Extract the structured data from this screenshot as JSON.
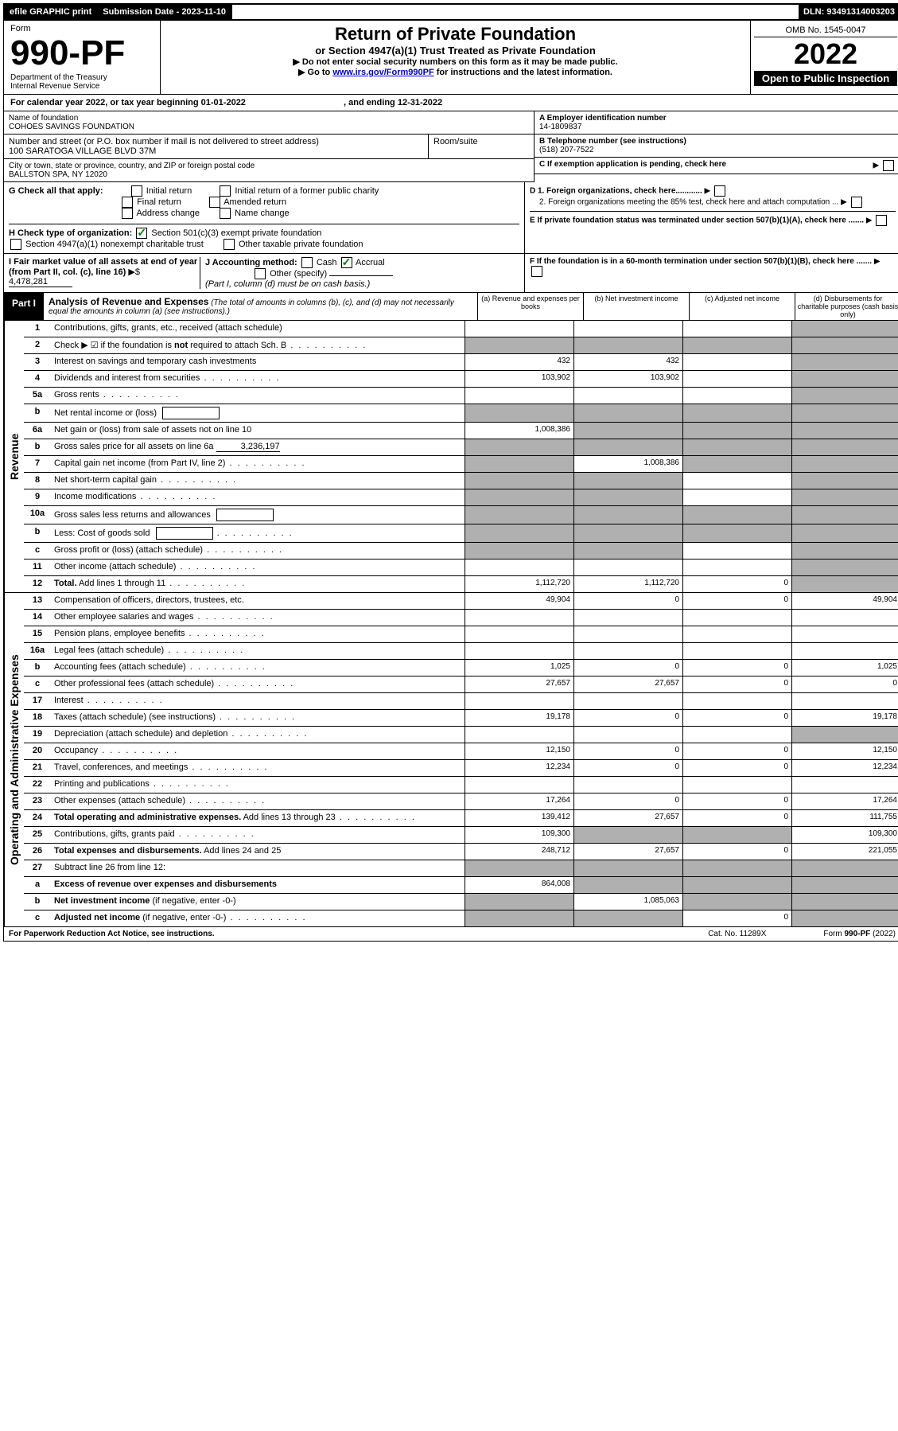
{
  "top_bar": {
    "efile": "efile GRAPHIC print",
    "submission_label": "Submission Date - 2023-11-10",
    "dln": "DLN: 93491314003203"
  },
  "header": {
    "form_word": "Form",
    "form_number": "990-PF",
    "dept": "Department of the Treasury",
    "irs": "Internal Revenue Service",
    "title": "Return of Private Foundation",
    "subtitle": "or Section 4947(a)(1) Trust Treated as Private Foundation",
    "instr1": "▶ Do not enter social security numbers on this form as it may be made public.",
    "instr2_prefix": "▶ Go to ",
    "instr2_link": "www.irs.gov/Form990PF",
    "instr2_suffix": " for instructions and the latest information.",
    "omb": "OMB No. 1545-0047",
    "year": "2022",
    "open_public": "Open to Public Inspection"
  },
  "cal_year": {
    "prefix": "For calendar year 2022, or tax year beginning ",
    "begin": "01-01-2022",
    "mid": " , and ending ",
    "end": "12-31-2022"
  },
  "entity": {
    "name_label": "Name of foundation",
    "name": "COHOES SAVINGS FOUNDATION",
    "addr_label": "Number and street (or P.O. box number if mail is not delivered to street address)",
    "addr": "100 SARATOGA VILLAGE BLVD 37M",
    "room_label": "Room/suite",
    "city_label": "City or town, state or province, country, and ZIP or foreign postal code",
    "city": "BALLSTON SPA, NY  12020",
    "a_label": "A Employer identification number",
    "a_val": "14-1809837",
    "b_label": "B Telephone number (see instructions)",
    "b_val": "(518) 207-7522",
    "c_label": "C If exemption application is pending, check here"
  },
  "checks": {
    "g_label": "G Check all that apply:",
    "g_opts": [
      "Initial return",
      "Initial return of a former public charity",
      "Final return",
      "Amended return",
      "Address change",
      "Name change"
    ],
    "h_label": "H Check type of organization:",
    "h_opt1": "Section 501(c)(3) exempt private foundation",
    "h_opt2": "Section 4947(a)(1) nonexempt charitable trust",
    "h_opt3": "Other taxable private foundation",
    "i_label": "I Fair market value of all assets at end of year (from Part II, col. (c), line 16)",
    "i_val": "4,478,281",
    "j_label": "J Accounting method:",
    "j_cash": "Cash",
    "j_accrual": "Accrual",
    "j_other": "Other (specify)",
    "j_note": "(Part I, column (d) must be on cash basis.)",
    "d1": "D 1. Foreign organizations, check here............",
    "d2": "2. Foreign organizations meeting the 85% test, check here and attach computation ...",
    "e": "E  If private foundation status was terminated under section 507(b)(1)(A), check here .......",
    "f": "F  If the foundation is in a 60-month termination under section 507(b)(1)(B), check here ......."
  },
  "part1": {
    "label": "Part I",
    "title": "Analysis of Revenue and Expenses",
    "note": " (The total of amounts in columns (b), (c), and (d) may not necessarily equal the amounts in column (a) (see instructions).)",
    "cols": {
      "a": "(a) Revenue and expenses per books",
      "b": "(b) Net investment income",
      "c": "(c) Adjusted net income",
      "d": "(d) Disbursements for charitable purposes (cash basis only)"
    }
  },
  "side_labels": {
    "revenue": "Revenue",
    "expenses": "Operating and Administrative Expenses"
  },
  "rows": [
    {
      "num": "1",
      "desc": "Contributions, gifts, grants, etc., received (attach schedule)",
      "a": "",
      "b": "",
      "c": "",
      "d": "shaded"
    },
    {
      "num": "2",
      "desc": "Check ▶ ☑ if the foundation is <b>not</b> required to attach Sch. B",
      "a": "shaded",
      "b": "shaded",
      "c": "shaded",
      "d": "shaded",
      "dots": true
    },
    {
      "num": "3",
      "desc": "Interest on savings and temporary cash investments",
      "a": "432",
      "b": "432",
      "c": "",
      "d": "shaded"
    },
    {
      "num": "4",
      "desc": "Dividends and interest from securities",
      "a": "103,902",
      "b": "103,902",
      "c": "",
      "d": "shaded",
      "dots": true
    },
    {
      "num": "5a",
      "desc": "Gross rents",
      "a": "",
      "b": "",
      "c": "",
      "d": "shaded",
      "dots": true
    },
    {
      "num": "b",
      "desc": "Net rental income or (loss)",
      "a": "shaded",
      "b": "shaded",
      "c": "shaded",
      "d": "shaded",
      "inline_box": true
    },
    {
      "num": "6a",
      "desc": "Net gain or (loss) from sale of assets not on line 10",
      "a": "1,008,386",
      "b": "shaded",
      "c": "shaded",
      "d": "shaded"
    },
    {
      "num": "b",
      "desc": "Gross sales price for all assets on line 6a",
      "a": "shaded",
      "b": "shaded",
      "c": "shaded",
      "d": "shaded",
      "inline_val": "3,236,197"
    },
    {
      "num": "7",
      "desc": "Capital gain net income (from Part IV, line 2)",
      "a": "shaded",
      "b": "1,008,386",
      "c": "shaded",
      "d": "shaded",
      "dots": true
    },
    {
      "num": "8",
      "desc": "Net short-term capital gain",
      "a": "shaded",
      "b": "shaded",
      "c": "",
      "d": "shaded",
      "dots": true
    },
    {
      "num": "9",
      "desc": "Income modifications",
      "a": "shaded",
      "b": "shaded",
      "c": "",
      "d": "shaded",
      "dots": true
    },
    {
      "num": "10a",
      "desc": "Gross sales less returns and allowances",
      "a": "shaded",
      "b": "shaded",
      "c": "shaded",
      "d": "shaded",
      "inline_box": true
    },
    {
      "num": "b",
      "desc": "Less: Cost of goods sold",
      "a": "shaded",
      "b": "shaded",
      "c": "shaded",
      "d": "shaded",
      "dots": true,
      "inline_box": true
    },
    {
      "num": "c",
      "desc": "Gross profit or (loss) (attach schedule)",
      "a": "shaded",
      "b": "shaded",
      "c": "",
      "d": "shaded",
      "dots": true
    },
    {
      "num": "11",
      "desc": "Other income (attach schedule)",
      "a": "",
      "b": "",
      "c": "",
      "d": "shaded",
      "dots": true
    },
    {
      "num": "12",
      "desc": "<b>Total.</b> Add lines 1 through 11",
      "a": "1,112,720",
      "b": "1,112,720",
      "c": "0",
      "d": "shaded",
      "dots": true
    }
  ],
  "exp_rows": [
    {
      "num": "13",
      "desc": "Compensation of officers, directors, trustees, etc.",
      "a": "49,904",
      "b": "0",
      "c": "0",
      "d": "49,904"
    },
    {
      "num": "14",
      "desc": "Other employee salaries and wages",
      "a": "",
      "b": "",
      "c": "",
      "d": "",
      "dots": true
    },
    {
      "num": "15",
      "desc": "Pension plans, employee benefits",
      "a": "",
      "b": "",
      "c": "",
      "d": "",
      "dots": true
    },
    {
      "num": "16a",
      "desc": "Legal fees (attach schedule)",
      "a": "",
      "b": "",
      "c": "",
      "d": "",
      "dots": true
    },
    {
      "num": "b",
      "desc": "Accounting fees (attach schedule)",
      "a": "1,025",
      "b": "0",
      "c": "0",
      "d": "1,025",
      "dots": true
    },
    {
      "num": "c",
      "desc": "Other professional fees (attach schedule)",
      "a": "27,657",
      "b": "27,657",
      "c": "0",
      "d": "0",
      "dots": true
    },
    {
      "num": "17",
      "desc": "Interest",
      "a": "",
      "b": "",
      "c": "",
      "d": "",
      "dots": true
    },
    {
      "num": "18",
      "desc": "Taxes (attach schedule) (see instructions)",
      "a": "19,178",
      "b": "0",
      "c": "0",
      "d": "19,178",
      "dots": true
    },
    {
      "num": "19",
      "desc": "Depreciation (attach schedule) and depletion",
      "a": "",
      "b": "",
      "c": "",
      "d": "shaded",
      "dots": true
    },
    {
      "num": "20",
      "desc": "Occupancy",
      "a": "12,150",
      "b": "0",
      "c": "0",
      "d": "12,150",
      "dots": true
    },
    {
      "num": "21",
      "desc": "Travel, conferences, and meetings",
      "a": "12,234",
      "b": "0",
      "c": "0",
      "d": "12,234",
      "dots": true
    },
    {
      "num": "22",
      "desc": "Printing and publications",
      "a": "",
      "b": "",
      "c": "",
      "d": "",
      "dots": true
    },
    {
      "num": "23",
      "desc": "Other expenses (attach schedule)",
      "a": "17,264",
      "b": "0",
      "c": "0",
      "d": "17,264",
      "dots": true
    },
    {
      "num": "24",
      "desc": "<b>Total operating and administrative expenses.</b> Add lines 13 through 23",
      "a": "139,412",
      "b": "27,657",
      "c": "0",
      "d": "111,755",
      "dots": true
    },
    {
      "num": "25",
      "desc": "Contributions, gifts, grants paid",
      "a": "109,300",
      "b": "shaded",
      "c": "shaded",
      "d": "109,300",
      "dots": true
    },
    {
      "num": "26",
      "desc": "<b>Total expenses and disbursements.</b> Add lines 24 and 25",
      "a": "248,712",
      "b": "27,657",
      "c": "0",
      "d": "221,055"
    },
    {
      "num": "27",
      "desc": "Subtract line 26 from line 12:",
      "a": "shaded",
      "b": "shaded",
      "c": "shaded",
      "d": "shaded"
    },
    {
      "num": "a",
      "desc": "<b>Excess of revenue over expenses and disbursements</b>",
      "a": "864,008",
      "b": "shaded",
      "c": "shaded",
      "d": "shaded"
    },
    {
      "num": "b",
      "desc": "<b>Net investment income</b> (if negative, enter -0-)",
      "a": "shaded",
      "b": "1,085,063",
      "c": "shaded",
      "d": "shaded"
    },
    {
      "num": "c",
      "desc": "<b>Adjusted net income</b> (if negative, enter -0-)",
      "a": "shaded",
      "b": "shaded",
      "c": "0",
      "d": "shaded",
      "dots": true
    }
  ],
  "footer": {
    "left": "For Paperwork Reduction Act Notice, see instructions.",
    "mid": "Cat. No. 11289X",
    "right": "Form 990-PF (2022)"
  },
  "colors": {
    "shaded": "#b0b0b0",
    "link": "#0000cc",
    "check": "#008000"
  }
}
